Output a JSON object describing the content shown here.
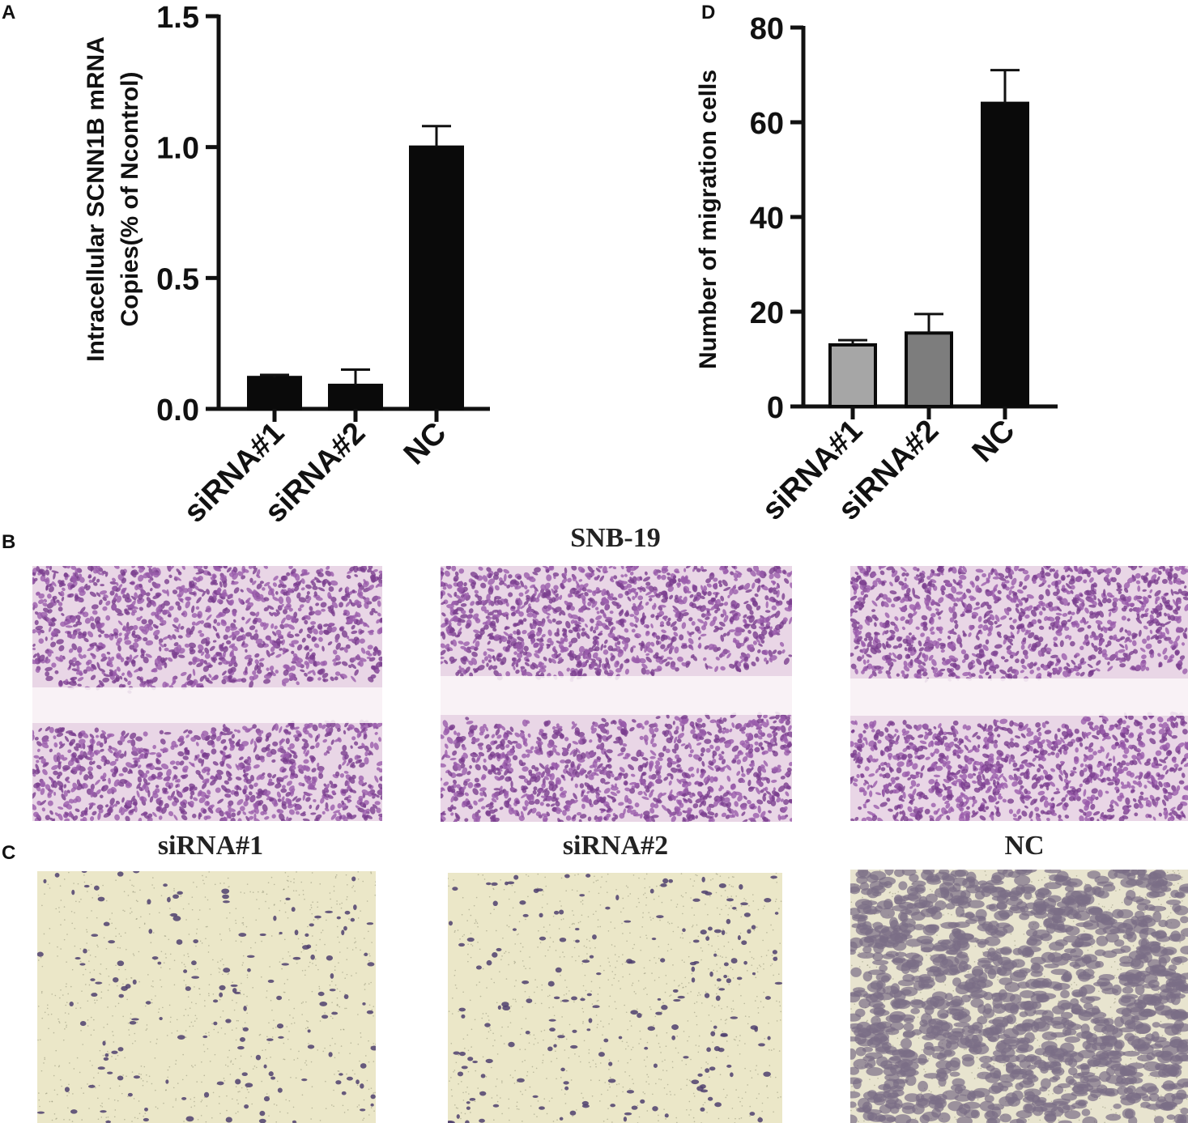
{
  "panels": {
    "A": "A",
    "B": "B",
    "C": "C",
    "D": "D"
  },
  "titles": {
    "b_title": "SNB-19",
    "c_titles": [
      "siRNA#1",
      "siRNA#2",
      "NC"
    ]
  },
  "chart_data": [
    {
      "panel": "A",
      "type": "bar",
      "categories": [
        "siRNA#1",
        "siRNA#2",
        "NC"
      ],
      "values": [
        0.12,
        0.09,
        1.0
      ],
      "errors": [
        0.01,
        0.06,
        0.08
      ],
      "ylabel_lines": [
        "Intracellular SCNN1B mRNA",
        "Copies(% of Ncontrol)"
      ],
      "ylim": [
        0,
        1.5
      ],
      "yticks": [
        "0.0",
        "0.5",
        "1.0",
        "1.5"
      ],
      "bar_colors": [
        "#0a0a0a",
        "#0a0a0a",
        "#0a0a0a"
      ]
    },
    {
      "panel": "D",
      "type": "bar",
      "categories": [
        "siRNA#1",
        "siRNA#2",
        "NC"
      ],
      "values": [
        13,
        15.5,
        64
      ],
      "errors": [
        1,
        4,
        7
      ],
      "ylabel": "Number of migration cells",
      "ylim": [
        0,
        80
      ],
      "yticks": [
        "0",
        "20",
        "40",
        "60",
        "80"
      ],
      "bar_colors": [
        "#a6a6a6",
        "#7d7d7d",
        "#0a0a0a"
      ]
    }
  ],
  "colors": {
    "stain_purple": "#8a4b9e",
    "scratch_bg": "#f3e9ef",
    "transwell_bg": "#e7e3c6",
    "dots": "#5b4a75"
  }
}
